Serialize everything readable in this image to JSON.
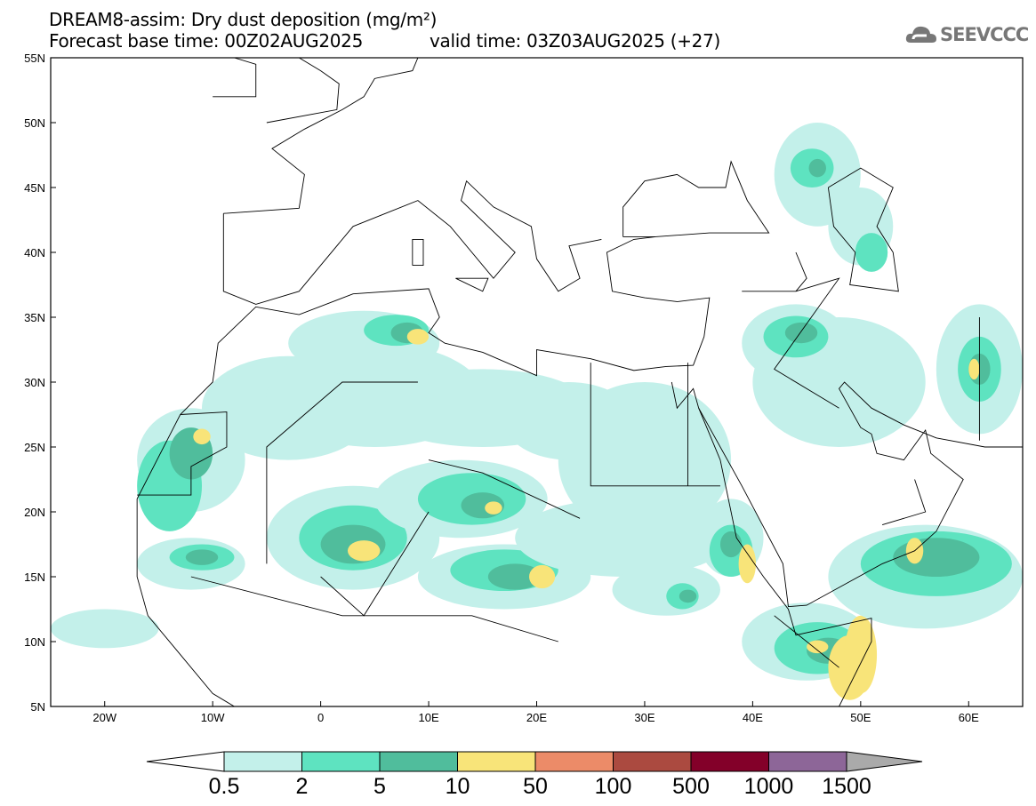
{
  "title": "DREAM8-assim: Dry dust deposition (mg/m²)",
  "base_time": "Forecast base time: 00Z02AUG2025",
  "valid_time": "valid time: 03Z03AUG2025 (+27)",
  "logo": "SEEVCCC",
  "map": {
    "lon_range": [
      -25,
      65
    ],
    "lat_range": [
      5,
      55
    ],
    "lon_labels": [
      {
        "v": -20,
        "t": "20W"
      },
      {
        "v": -10,
        "t": "10W"
      },
      {
        "v": 0,
        "t": "0"
      },
      {
        "v": 10,
        "t": "10E"
      },
      {
        "v": 20,
        "t": "20E"
      },
      {
        "v": 30,
        "t": "30E"
      },
      {
        "v": 40,
        "t": "40E"
      },
      {
        "v": 50,
        "t": "50E"
      },
      {
        "v": 60,
        "t": "60E"
      }
    ],
    "lat_labels": [
      {
        "v": 5,
        "t": "5N"
      },
      {
        "v": 10,
        "t": "10N"
      },
      {
        "v": 15,
        "t": "15N"
      },
      {
        "v": 20,
        "t": "20N"
      },
      {
        "v": 25,
        "t": "25N"
      },
      {
        "v": 30,
        "t": "30N"
      },
      {
        "v": 35,
        "t": "35N"
      },
      {
        "v": 40,
        "t": "40N"
      },
      {
        "v": 45,
        "t": "45N"
      },
      {
        "v": 50,
        "t": "50N"
      },
      {
        "v": 55,
        "t": "55N"
      }
    ]
  },
  "colorbar": {
    "labels": [
      "0.5",
      "2",
      "5",
      "10",
      "50",
      "100",
      "500",
      "1000",
      "1500"
    ],
    "colors": [
      "#c3f0ea",
      "#5ee3c0",
      "#50bd9c",
      "#f8e479",
      "#ec8b68",
      "#ab4a40",
      "#830029",
      "#8d6698"
    ],
    "under_color": "#ffffff",
    "over_color": "#aaaaaa"
  }
}
